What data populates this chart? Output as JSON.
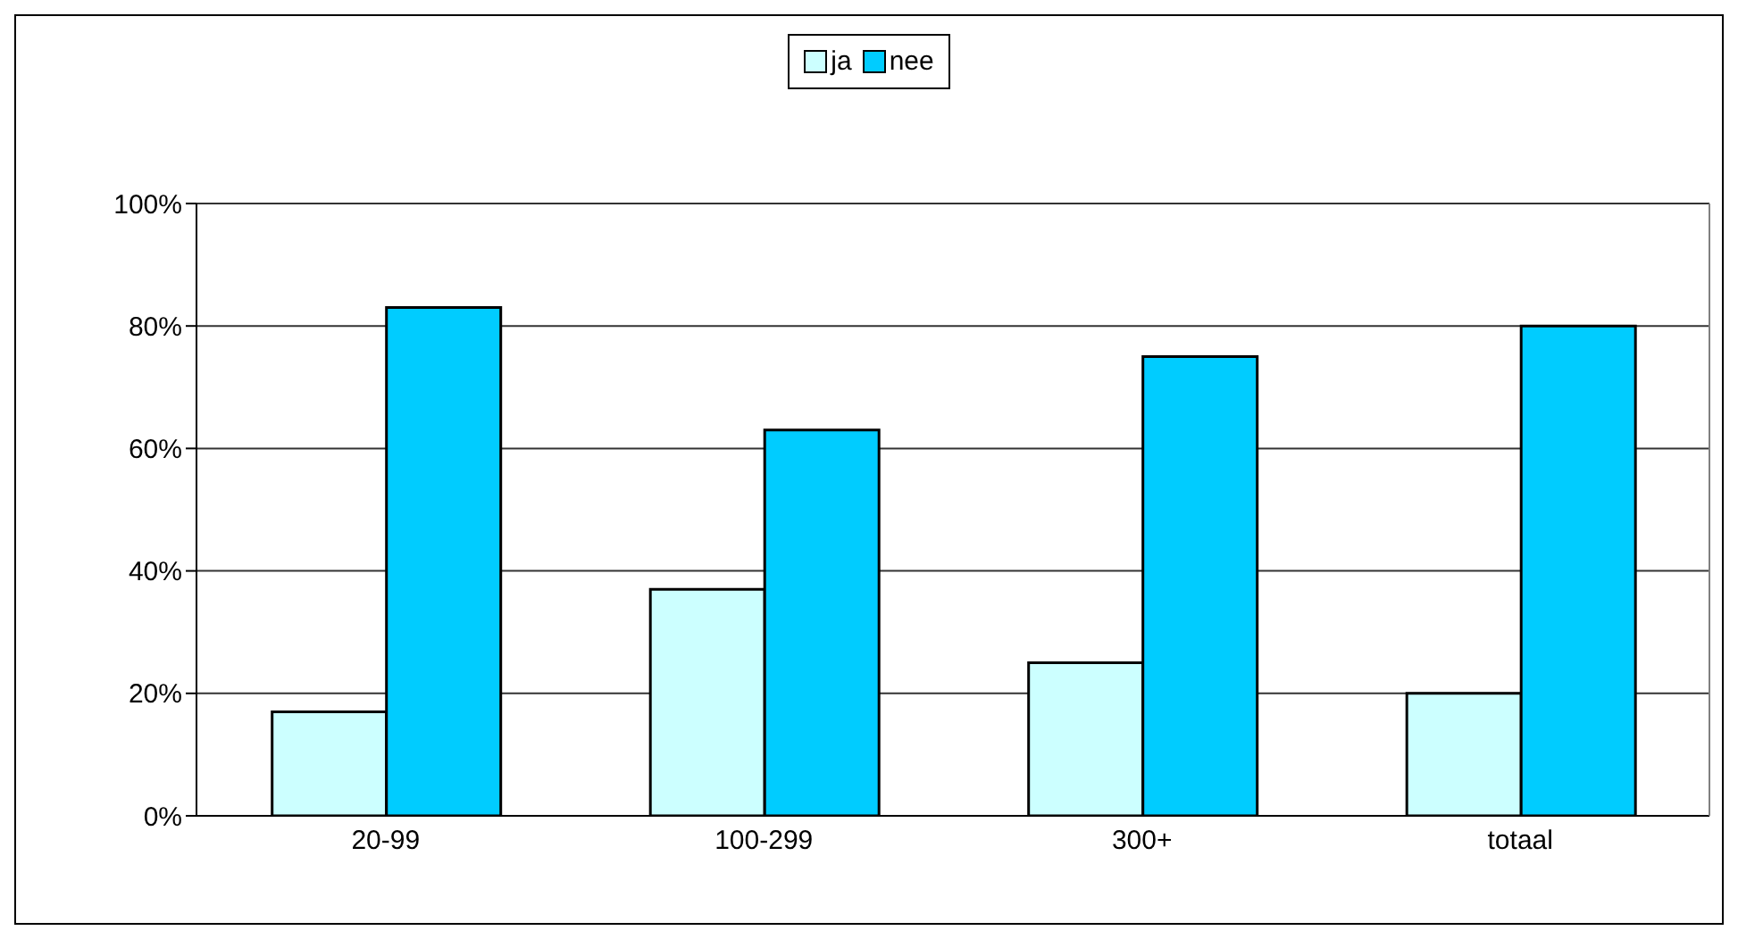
{
  "chart_data": {
    "type": "bar",
    "categories": [
      "20-99",
      "100-299",
      "300+",
      "totaal"
    ],
    "series": [
      {
        "name": "ja",
        "color": "#ccffff",
        "values": [
          17,
          37,
          25,
          20
        ]
      },
      {
        "name": "nee",
        "color": "#00ccff",
        "values": [
          83,
          63,
          75,
          80
        ]
      }
    ],
    "ylim": [
      0,
      100
    ],
    "yticks": [
      {
        "value": 0,
        "label": "0%"
      },
      {
        "value": 20,
        "label": "20%"
      },
      {
        "value": 40,
        "label": "40%"
      },
      {
        "value": 60,
        "label": "60%"
      },
      {
        "value": 80,
        "label": "80%"
      },
      {
        "value": 100,
        "label": "100%"
      }
    ],
    "grid": "y",
    "legend": "top"
  }
}
